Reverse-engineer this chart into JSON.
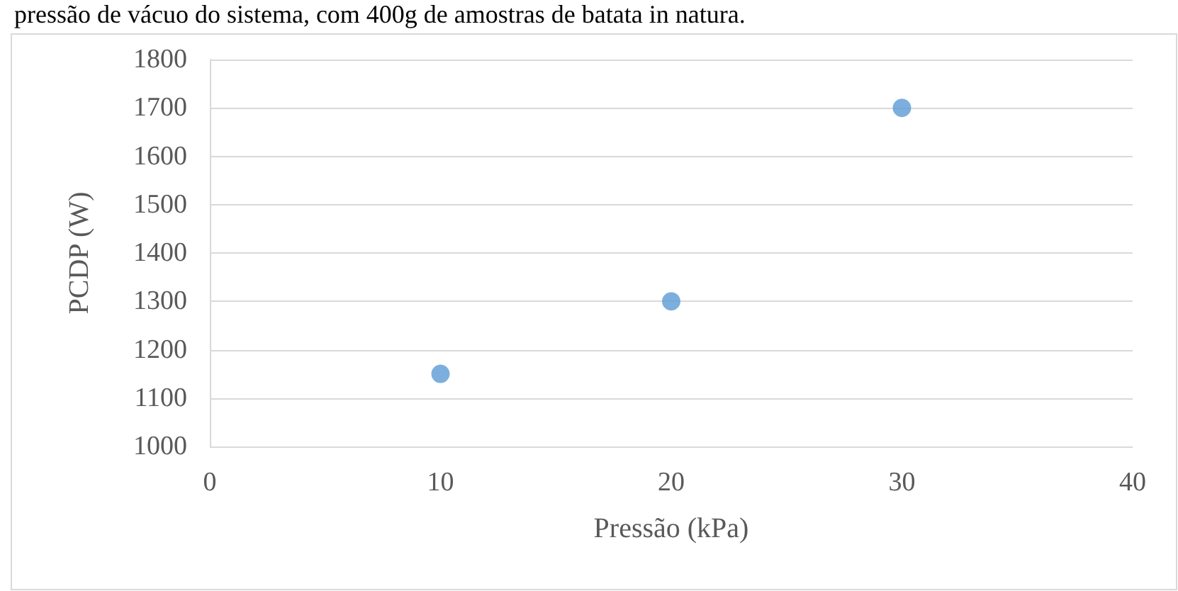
{
  "chart_data": {
    "type": "scatter",
    "annotations": [
      "pressão de vácuo do sistema, com 400g de amostras de batata in natura."
    ],
    "xlabel": "Pressão (kPa)",
    "ylabel": "PCDP (W)",
    "x": [
      10,
      20,
      30
    ],
    "series": [
      {
        "color": "#5b9bd5",
        "values": [
          1150,
          1300,
          1700
        ]
      }
    ],
    "xlim": [
      0,
      40
    ],
    "xticks": [
      0,
      10,
      20,
      30,
      40
    ],
    "ylim": [
      1000,
      1800
    ],
    "yticks": [
      1000,
      1100,
      1200,
      1300,
      1400,
      1500,
      1600,
      1700,
      1800
    ],
    "grid": "y",
    "marker": "circle"
  }
}
